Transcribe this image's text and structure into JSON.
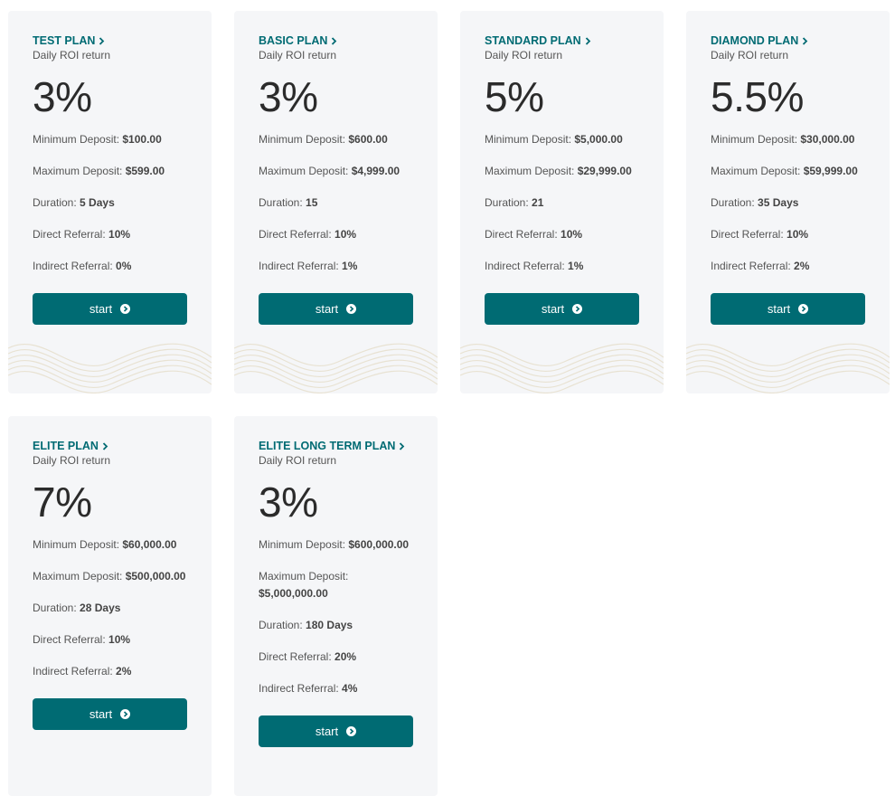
{
  "accent": "#006b73",
  "button_icon": "chevron-circle-right-icon",
  "title_icon": "chevron-right-icon",
  "plans": [
    {
      "name": "TEST PLAN",
      "subtitle": "Daily ROI return",
      "rate": "3%",
      "button": "start",
      "items": [
        {
          "label": "Minimum Deposit:",
          "value": "$100.00"
        },
        {
          "label": "Maximum Deposit:",
          "value": "$599.00"
        },
        {
          "label": "Duration:",
          "value": "5 Days"
        },
        {
          "label": "Direct Referral:",
          "value": "10%"
        },
        {
          "label": "Indirect Referral:",
          "value": "0%"
        }
      ]
    },
    {
      "name": "BASIC PLAN",
      "subtitle": "Daily ROI return",
      "rate": "3%",
      "button": "start",
      "items": [
        {
          "label": "Minimum Deposit:",
          "value": "$600.00"
        },
        {
          "label": "Maximum Deposit:",
          "value": "$4,999.00"
        },
        {
          "label": "Duration:",
          "value": "15"
        },
        {
          "label": "Direct Referral:",
          "value": "10%"
        },
        {
          "label": "Indirect Referral:",
          "value": "1%"
        }
      ]
    },
    {
      "name": "STANDARD PLAN",
      "subtitle": "Daily ROI return",
      "rate": "5%",
      "button": "start",
      "items": [
        {
          "label": "Minimum Deposit:",
          "value": "$5,000.00"
        },
        {
          "label": "Maximum Deposit:",
          "value": "$29,999.00"
        },
        {
          "label": "Duration:",
          "value": "21"
        },
        {
          "label": "Direct Referral:",
          "value": "10%"
        },
        {
          "label": "Indirect Referral:",
          "value": "1%"
        }
      ]
    },
    {
      "name": "DIAMOND PLAN",
      "subtitle": "Daily ROI return",
      "rate": "5.5%",
      "button": "start",
      "items": [
        {
          "label": "Minimum Deposit:",
          "value": "$30,000.00"
        },
        {
          "label": "Maximum Deposit:",
          "value": "$59,999.00"
        },
        {
          "label": "Duration:",
          "value": "35 Days"
        },
        {
          "label": "Direct Referral:",
          "value": "10%"
        },
        {
          "label": "Indirect Referral:",
          "value": "2%"
        }
      ]
    },
    {
      "name": "ELITE PLAN",
      "subtitle": "Daily ROI return",
      "rate": "7%",
      "button": "start",
      "items": [
        {
          "label": "Minimum Deposit:",
          "value": "$60,000.00"
        },
        {
          "label": "Maximum Deposit:",
          "value": "$500,000.00"
        },
        {
          "label": "Duration:",
          "value": "28 Days"
        },
        {
          "label": "Direct Referral:",
          "value": "10%"
        },
        {
          "label": "Indirect Referral:",
          "value": "2%"
        }
      ]
    },
    {
      "name": "ELITE LONG TERM PLAN",
      "subtitle": "Daily ROI return",
      "rate": "3%",
      "button": "start",
      "items": [
        {
          "label": "Minimum Deposit:",
          "value": "$600,000.00"
        },
        {
          "label": "Maximum Deposit:",
          "value": "$5,000,000.00"
        },
        {
          "label": "Duration:",
          "value": "180 Days"
        },
        {
          "label": "Direct Referral:",
          "value": "20%"
        },
        {
          "label": "Indirect Referral:",
          "value": "4%"
        }
      ]
    }
  ]
}
